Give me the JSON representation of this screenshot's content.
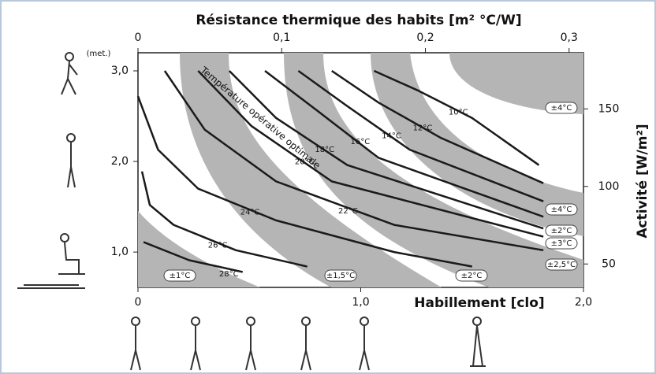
{
  "chart_data": {
    "type": "line",
    "title": "Résistance thermique des habits [m² °C/W]",
    "xlabel": "Habillement [clo]",
    "ylabel": "(met.)",
    "y2label": "Activité [W/m²]",
    "annotation": "Température opérative optimale",
    "color": "#1a1a1a",
    "xlim": [
      0,
      2
    ],
    "xticks": [
      0,
      {
        "value": 1,
        "label": "1,0"
      },
      {
        "value": 2,
        "label": "2,0"
      }
    ],
    "ylim": [
      0.61,
      3.2
    ],
    "yticks": [
      {
        "value": 1,
        "label": "1,0"
      },
      {
        "value": 2,
        "label": "2,0"
      },
      {
        "value": 3,
        "label": "3,0"
      }
    ],
    "x2lim": [
      0,
      0.31
    ],
    "x2ticks": [
      0,
      {
        "value": 0.1,
        "label": "0,1"
      },
      {
        "value": 0.2,
        "label": "0,2"
      },
      {
        "value": 0.3,
        "label": "0,3"
      }
    ],
    "y2lim": [
      34.9,
      186.2
    ],
    "y2ticks": [
      50,
      100,
      150
    ],
    "series": [
      {
        "name": "28°C",
        "x": [
          0.025,
          0.23,
          0.47
        ],
        "values": [
          1.11,
          0.91,
          0.78
        ]
      },
      {
        "name": "26°C",
        "x": [
          0.018,
          0.053,
          0.16,
          0.44,
          0.76
        ],
        "values": [
          1.89,
          1.52,
          1.3,
          1.02,
          0.84
        ]
      },
      {
        "name": "24°C",
        "x": [
          0,
          0.09,
          0.27,
          0.62,
          1.15,
          1.5
        ],
        "values": [
          2.72,
          2.13,
          1.7,
          1.35,
          1.0,
          0.84
        ]
      },
      {
        "name": "22°C",
        "x": [
          0.12,
          0.3,
          0.62,
          1.15,
          1.82
        ],
        "values": [
          3.0,
          2.35,
          1.78,
          1.3,
          1.02
        ]
      },
      {
        "name": "20°C",
        "x": [
          0.27,
          0.51,
          0.87,
          1.82
        ],
        "values": [
          3.0,
          2.39,
          1.78,
          1.17
        ]
      },
      {
        "name": "18°C",
        "x": [
          0.41,
          0.62,
          0.94,
          1.82
        ],
        "values": [
          3.0,
          2.48,
          1.96,
          1.26
        ]
      },
      {
        "name": "16°C",
        "x": [
          0.57,
          0.8,
          1.08,
          1.82
        ],
        "values": [
          3.0,
          2.57,
          2.04,
          1.39
        ]
      },
      {
        "name": "14°C",
        "x": [
          0.72,
          0.94,
          1.22,
          1.82
        ],
        "values": [
          3.0,
          2.61,
          2.13,
          1.56
        ]
      },
      {
        "name": "12°C",
        "x": [
          0.87,
          1.08,
          1.36,
          1.82
        ],
        "values": [
          3.0,
          2.65,
          2.26,
          1.76
        ]
      },
      {
        "name": "10°C",
        "x": [
          1.06,
          1.26,
          1.5,
          1.8
        ],
        "values": [
          3.0,
          2.78,
          2.48,
          1.96
        ]
      }
    ],
    "tolerance_labels": [
      "±1°C",
      "±1,5°C",
      "±2°C",
      "±2,5°C",
      "±3°C",
      "±2°C",
      "±4°C",
      "±4°C"
    ]
  }
}
